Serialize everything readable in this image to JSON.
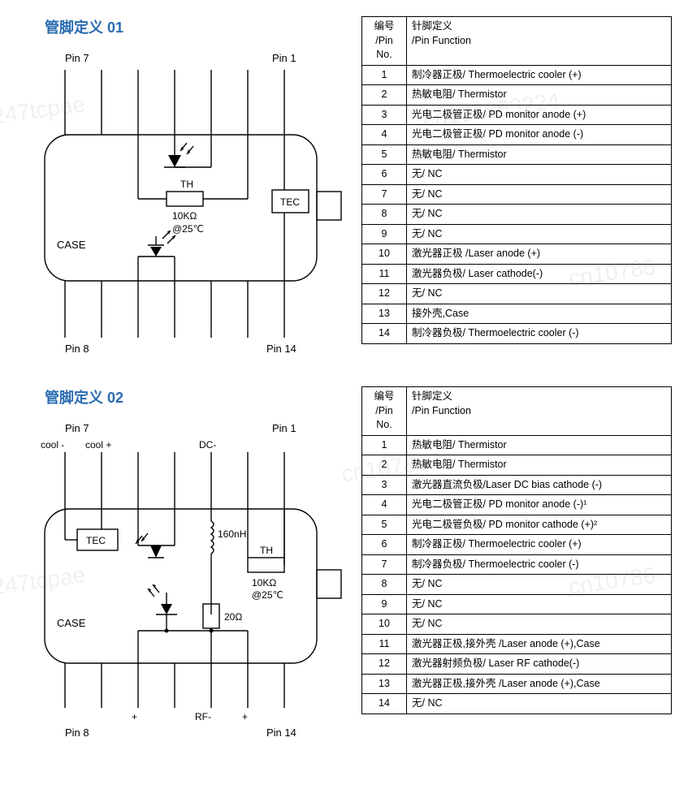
{
  "colors": {
    "title": "#2a6cb0",
    "stroke": "#000000",
    "text": "#000000",
    "bg": "#ffffff",
    "watermark": "rgba(0,0,0,0.06)"
  },
  "typography": {
    "title_fontsize": 18,
    "table_fontsize": 12.5,
    "diagram_fontsize": 13
  },
  "section1": {
    "title": "管脚定义 01",
    "diagram": {
      "pin7": "Pin 7",
      "pin1": "Pin 1",
      "pin8": "Pin 8",
      "pin14": "Pin 14",
      "case": "CASE",
      "th": "TH",
      "thermistor_val": "10KΩ",
      "thermistor_temp": "@25℃",
      "tec": "TEC",
      "stroke_width": 1.4,
      "case_corner_radius": 30
    },
    "table": {
      "header_col1_l1": "编号",
      "header_col1_l2": "/Pin No.",
      "header_col2_l1": "针脚定义",
      "header_col2_l2": "/Pin Function",
      "rows": [
        {
          "num": "1",
          "func": "制冷器正极/ Thermoelectric cooler (+)"
        },
        {
          "num": "2",
          "func": "热敏电阻/ Thermistor"
        },
        {
          "num": "3",
          "func": "光电二极管正极/ PD monitor anode (+)"
        },
        {
          "num": "4",
          "func": "光电二极管正极/ PD monitor anode (-)"
        },
        {
          "num": "5",
          "func": "热敏电阻/ Thermistor"
        },
        {
          "num": "6",
          "func": "无/ NC"
        },
        {
          "num": "7",
          "func": "无/ NC"
        },
        {
          "num": "8",
          "func": "无/ NC"
        },
        {
          "num": "9",
          "func": "无/ NC"
        },
        {
          "num": "10",
          "func": "激光器正极 /Laser anode (+)"
        },
        {
          "num": "11",
          "func": "激光器负极/ Laser cathode(-)"
        },
        {
          "num": "12",
          "func": "无/ NC"
        },
        {
          "num": "13",
          "func": "接外壳,Case"
        },
        {
          "num": "14",
          "func": "制冷器负极/ Thermoelectric cooler (-)"
        }
      ]
    }
  },
  "section2": {
    "title": "管脚定义 02",
    "diagram": {
      "pin7": "Pin 7",
      "pin1": "Pin 1",
      "pin8": "Pin 8",
      "pin14": "Pin 14",
      "case": "CASE",
      "cool_minus": "cool -",
      "cool_plus": "cool +",
      "dc_minus": "DC-",
      "rf_minus": "RF-",
      "plus1": "+",
      "plus2": "+",
      "plus3": "+",
      "tec": "TEC",
      "th": "TH",
      "thermistor_val": "10KΩ",
      "thermistor_temp": "@25℃",
      "inductor_val": "160nH",
      "resistor_val": "20Ω",
      "stroke_width": 1.4,
      "case_corner_radius": 30
    },
    "table": {
      "header_col1_l1": "编号",
      "header_col1_l2": "/Pin",
      "header_col1_l3": "No.",
      "header_col2_l1": "针脚定义",
      "header_col2_l2": "/Pin Function",
      "rows": [
        {
          "num": "1",
          "func": "热敏电阻/ Thermistor"
        },
        {
          "num": "2",
          "func": "热敏电阻/ Thermistor"
        },
        {
          "num": "3",
          "func": "激光器直流负极/Laser DC bias cathode (-)"
        },
        {
          "num": "4",
          "func": "光电二极管正极/ PD monitor anode (-)¹"
        },
        {
          "num": "5",
          "func": "光电二极管负极/ PD monitor cathode (+)²"
        },
        {
          "num": "6",
          "func": "制冷器正极/ Thermoelectric cooler (+)"
        },
        {
          "num": "7",
          "func": "制冷器负极/ Thermoelectric cooler (-)"
        },
        {
          "num": "8",
          "func": "无/ NC"
        },
        {
          "num": "9",
          "func": "无/ NC"
        },
        {
          "num": "10",
          "func": "无/ NC"
        },
        {
          "num": "11",
          "func": "激光器正极,接外壳 /Laser anode (+),Case"
        },
        {
          "num": "12",
          "func": "激光器射频负极/ Laser RF cathode(-)"
        },
        {
          "num": "13",
          "func": "激光器正极,接外壳 /Laser anode (+),Case"
        },
        {
          "num": "14",
          "func": "无/ NC"
        }
      ]
    }
  },
  "watermarks": [
    "247tcpae",
    "cn107863224",
    "cn10786",
    "cn107863",
    "247tcpae",
    "cn10786"
  ]
}
